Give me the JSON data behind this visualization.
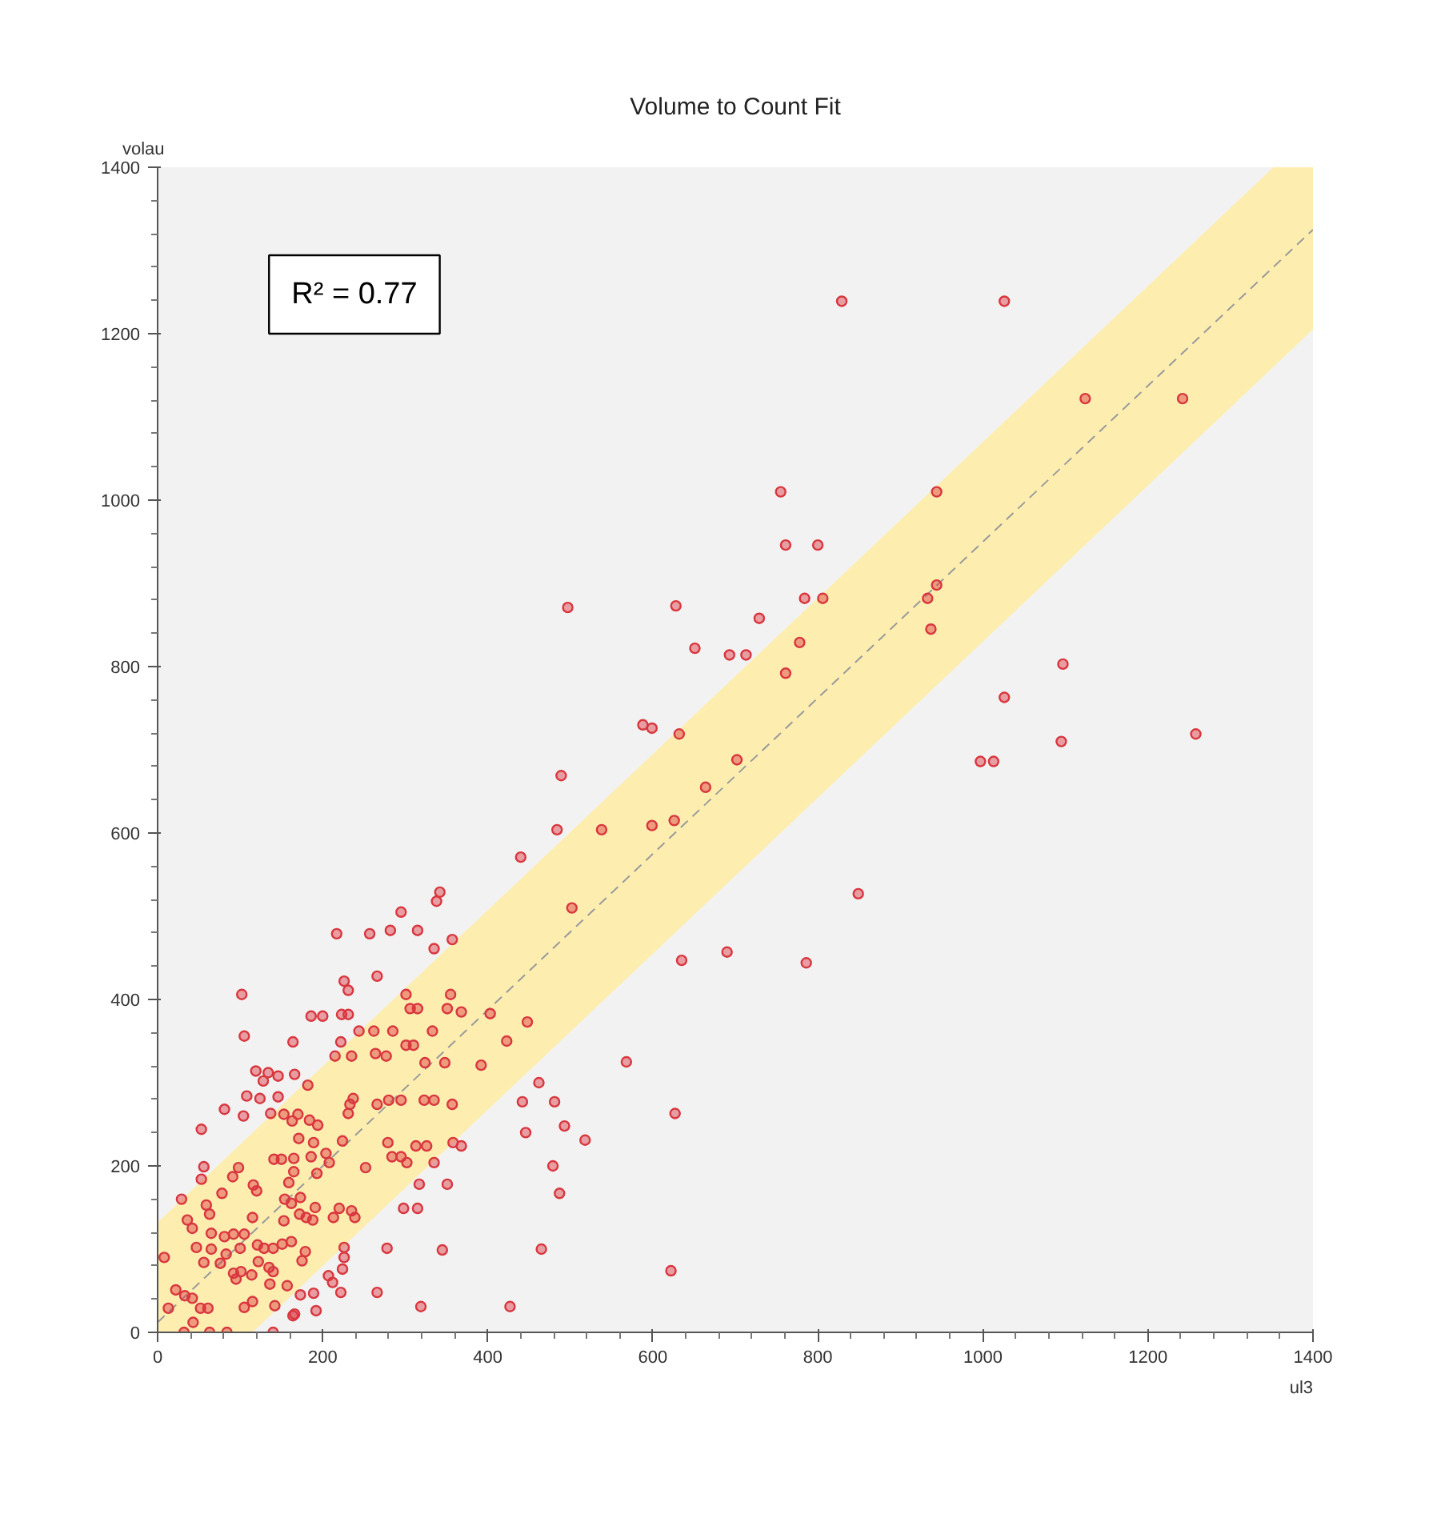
{
  "chart_data": {
    "type": "scatter",
    "title": "Volume to Count Fit",
    "xlabel": "ul3",
    "ylabel": "volau",
    "annotations": [
      "R² = 0.77"
    ],
    "xlim": [
      0,
      1400
    ],
    "ylim": [
      0,
      1400
    ],
    "xticks": [
      0,
      200,
      400,
      600,
      800,
      1000,
      1200,
      1400
    ],
    "yticks": [
      0,
      200,
      400,
      600,
      800,
      1000,
      1200,
      1400
    ],
    "grid": false,
    "series": [
      {
        "marker": "circle",
        "color": "#d9363e",
        "x": [
          829,
          1026,
          1124,
          1242,
          755,
          944,
          761,
          800,
          944,
          933,
          784,
          806,
          628,
          729,
          937,
          651,
          693,
          713,
          778,
          761,
          1097,
          1026,
          1095,
          1258,
          997,
          1013,
          599,
          588,
          632,
          702,
          664,
          626,
          599,
          849,
          635,
          690,
          786,
          568,
          627,
          622,
          497,
          489,
          484,
          538,
          440,
          342,
          338,
          295,
          502,
          217,
          257,
          282,
          315,
          335,
          357,
          102,
          226,
          231,
          266,
          301,
          355,
          105,
          164,
          186,
          200,
          223,
          231,
          244,
          262,
          285,
          306,
          315,
          333,
          351,
          368,
          222,
          215,
          235,
          264,
          277,
          301,
          310,
          324,
          348,
          119,
          134,
          146,
          166,
          128,
          108,
          124,
          146,
          137,
          182,
          81,
          104,
          53,
          153,
          170,
          163,
          184,
          194,
          171,
          189,
          224,
          231,
          233,
          237,
          266,
          280,
          295,
          323,
          335,
          357,
          141,
          150,
          165,
          186,
          279,
          284,
          295,
          302,
          313,
          326,
          335,
          358,
          368,
          252,
          317,
          351,
          56,
          53,
          29,
          98,
          91,
          116,
          120,
          78,
          159,
          165,
          193,
          204,
          208,
          162,
          154,
          173,
          191,
          220,
          235,
          239,
          213,
          59,
          63,
          36,
          42,
          115,
          153,
          172,
          180,
          188,
          298,
          315,
          278,
          345,
          8,
          65,
          47,
          65,
          56,
          81,
          92,
          105,
          100,
          121,
          129,
          83,
          76,
          92,
          95,
          101,
          114,
          122,
          135,
          140,
          140,
          151,
          162,
          179,
          175,
          136,
          157,
          173,
          192,
          142,
          115,
          105,
          207,
          212,
          224,
          226,
          226,
          222,
          189,
          166,
          164,
          13,
          22,
          33,
          42,
          52,
          61,
          43,
          32,
          84,
          140,
          63,
          266,
          319,
          403,
          423,
          448,
          442,
          446,
          462,
          481,
          493,
          479,
          487,
          465,
          427,
          518,
          392
        ],
        "values": [
          1239,
          1239,
          1122,
          1122,
          1010,
          1010,
          946,
          946,
          898,
          882,
          882,
          882,
          873,
          858,
          845,
          822,
          814,
          814,
          829,
          792,
          803,
          763,
          710,
          719,
          686,
          686,
          726,
          730,
          719,
          688,
          655,
          615,
          609,
          527,
          447,
          457,
          444,
          325,
          263,
          74,
          871,
          669,
          604,
          604,
          571,
          529,
          518,
          505,
          510,
          479,
          479,
          483,
          483,
          461,
          472,
          406,
          422,
          411,
          428,
          406,
          406,
          356,
          349,
          380,
          380,
          382,
          382,
          362,
          362,
          362,
          389,
          389,
          362,
          389,
          385,
          349,
          332,
          332,
          335,
          332,
          345,
          345,
          324,
          324,
          314,
          312,
          308,
          310,
          302,
          284,
          281,
          283,
          263,
          297,
          268,
          260,
          244,
          262,
          262,
          254,
          255,
          249,
          233,
          228,
          230,
          263,
          274,
          281,
          274,
          279,
          279,
          279,
          279,
          274,
          208,
          208,
          209,
          211,
          228,
          211,
          211,
          204,
          224,
          224,
          204,
          228,
          224,
          198,
          178,
          178,
          199,
          184,
          160,
          198,
          187,
          177,
          170,
          167,
          180,
          193,
          191,
          215,
          204,
          155,
          160,
          162,
          150,
          149,
          146,
          138,
          138,
          153,
          142,
          135,
          125,
          138,
          134,
          142,
          138,
          135,
          149,
          149,
          101,
          99,
          90,
          119,
          102,
          100,
          84,
          115,
          118,
          118,
          101,
          105,
          101,
          94,
          83,
          71,
          64,
          73,
          69,
          85,
          78,
          73,
          101,
          106,
          109,
          97,
          86,
          58,
          56,
          45,
          26,
          32,
          37,
          30,
          68,
          60,
          76,
          90,
          102,
          48,
          47,
          22,
          20,
          29,
          51,
          44,
          41,
          29,
          29,
          12,
          0,
          0,
          0,
          0,
          48,
          31,
          383,
          350,
          373,
          277,
          240,
          300,
          277,
          248,
          200,
          167,
          100,
          31,
          231,
          321
        ]
      },
      {
        "type": "line",
        "color": "#9a9a9a",
        "line_style": "dashed",
        "x": [
          0,
          115,
          1352,
          1400
        ],
        "values": [
          12,
          120,
          1280,
          1325
        ],
        "lower": [
          0,
          0,
          1160,
          1205
        ],
        "upper": [
          132,
          240,
          1400,
          1400
        ]
      }
    ]
  }
}
